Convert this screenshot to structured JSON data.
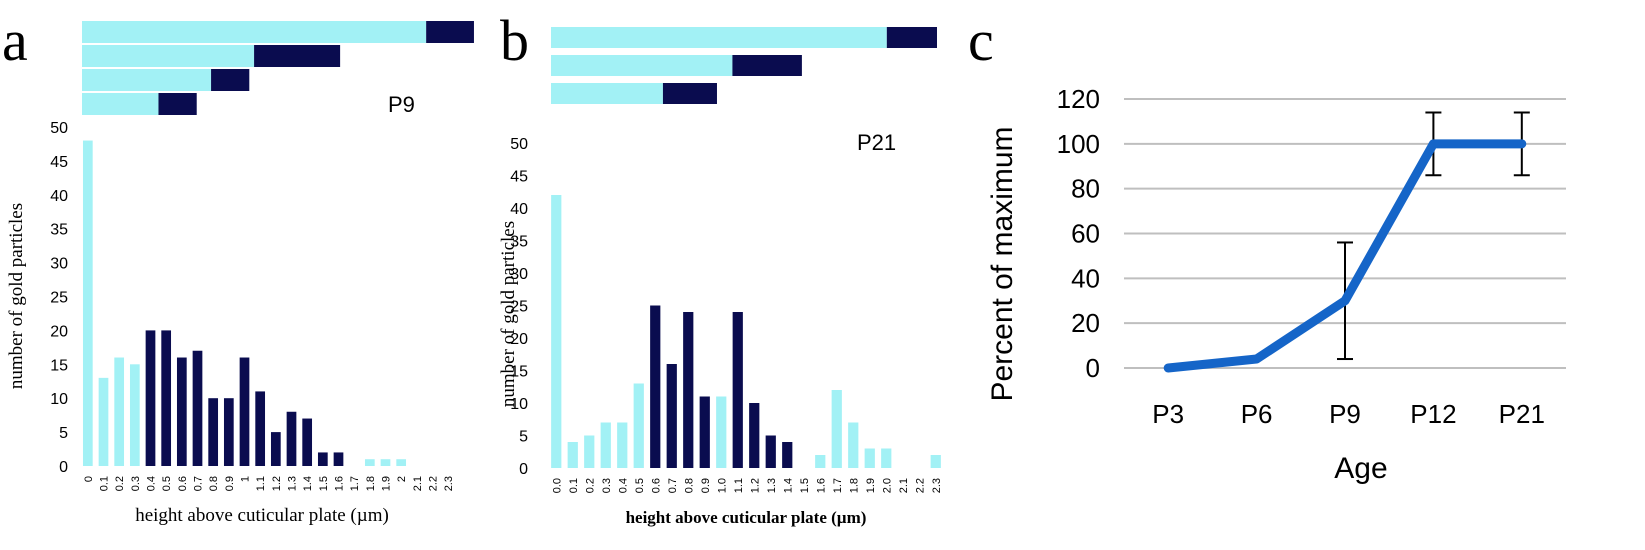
{
  "colors": {
    "light": "#a2f1f5",
    "dark": "#0a0c4f",
    "line": "#1565c8",
    "grid": "#bfbfbf"
  },
  "panels": [
    {
      "letter": "a",
      "tag": "P9",
      "xlabel": "height above cuticular plate (µm)",
      "ylabel": "number of gold particles"
    },
    {
      "letter": "b",
      "tag": "P21",
      "xlabel": "height above cuticular plate (µm)",
      "ylabel": "number of gold particles"
    },
    {
      "letter": "c"
    }
  ],
  "chart_data": [
    {
      "type": "bar",
      "panel": "a",
      "categories": [
        "0",
        "0.1",
        "0.2",
        "0.3",
        "0.4",
        "0.5",
        "0.6",
        "0.7",
        "0.8",
        "0.9",
        "1",
        "1.1",
        "1.2",
        "1.3",
        "1.4",
        "1.5",
        "1.6",
        "1.7",
        "1.8",
        "1.9",
        "2",
        "2.1",
        "2.2",
        "2.3"
      ],
      "values": [
        48,
        13,
        16,
        15,
        20,
        20,
        16,
        17,
        10,
        10,
        16,
        11,
        5,
        8,
        7,
        2,
        2,
        0,
        1,
        1,
        1,
        0,
        0,
        0
      ],
      "bar_colors": [
        "light",
        "light",
        "light",
        "light",
        "dark",
        "dark",
        "dark",
        "dark",
        "dark",
        "dark",
        "dark",
        "dark",
        "dark",
        "dark",
        "dark",
        "dark",
        "dark",
        "light",
        "light",
        "light",
        "light",
        "light",
        "light",
        "light"
      ],
      "ylim": [
        0,
        50
      ],
      "yticks": [
        "0",
        "5",
        "10",
        "15",
        "20",
        "25",
        "30",
        "35",
        "40",
        "45",
        "50"
      ],
      "xlabel": "height above cuticular plate (µm)",
      "ylabel": "number of gold particles",
      "legend_schematic": [
        {
          "light": 0.72,
          "dark": 0.1
        },
        {
          "light": 0.36,
          "dark": 0.18
        },
        {
          "light": 0.27,
          "dark": 0.08
        },
        {
          "light": 0.16,
          "dark": 0.08
        }
      ]
    },
    {
      "type": "bar",
      "panel": "b",
      "categories": [
        "0.0",
        "0.1",
        "0.2",
        "0.3",
        "0.4",
        "0.5",
        "0.6",
        "0.7",
        "0.8",
        "0.9",
        "1.0",
        "1.1",
        "1.2",
        "1.3",
        "1.4",
        "1.5",
        "1.6",
        "1.7",
        "1.8",
        "1.9",
        "2.0",
        "2.1",
        "2.2",
        "2.3"
      ],
      "values": [
        42,
        4,
        5,
        7,
        7,
        13,
        25,
        16,
        24,
        11,
        11,
        24,
        10,
        5,
        4,
        0,
        2,
        12,
        7,
        3,
        3,
        0,
        0,
        2
      ],
      "bar_colors": [
        "light",
        "light",
        "light",
        "light",
        "light",
        "light",
        "dark",
        "dark",
        "dark",
        "dark",
        "light",
        "dark",
        "dark",
        "dark",
        "dark",
        "light",
        "light",
        "light",
        "light",
        "light",
        "light",
        "light",
        "light",
        "light"
      ],
      "ylim": [
        0,
        50
      ],
      "yticks": [
        "0",
        "5",
        "10",
        "15",
        "20",
        "25",
        "30",
        "35",
        "40",
        "45",
        "50"
      ],
      "xlabel": "height above cuticular plate (µm)",
      "ylabel": "number of gold particles",
      "legend_schematic": [
        {
          "light": 0.87,
          "dark": 0.13
        },
        {
          "light": 0.47,
          "dark": 0.18
        },
        {
          "light": 0.29,
          "dark": 0.14
        }
      ]
    },
    {
      "type": "line",
      "panel": "c",
      "categories": [
        "P3",
        "P6",
        "P9",
        "P12",
        "P21"
      ],
      "values": [
        0,
        4,
        30,
        100,
        100
      ],
      "error": [
        0,
        0,
        26,
        14,
        14
      ],
      "ylim": [
        0,
        120
      ],
      "yticks": [
        "0",
        "20",
        "40",
        "60",
        "80",
        "100",
        "120"
      ],
      "xlabel": "Age",
      "ylabel": "Percent of maximum",
      "grid": true
    }
  ]
}
